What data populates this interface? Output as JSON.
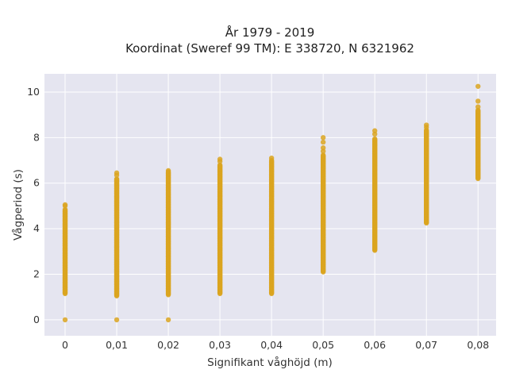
{
  "chart_data": {
    "type": "scatter",
    "title_line1": "År 1979 - 2019",
    "title_line2": "Koordinat (Sweref 99 TM): E 338720, N 6321962",
    "xlabel": "Signifikant våghöjd (m)",
    "ylabel": "Vågperiod (s)",
    "x_tick_labels": [
      "0",
      "0,01",
      "0,02",
      "0,03",
      "0,04",
      "0,05",
      "0,06",
      "0,07",
      "0,08"
    ],
    "y_tick_labels": [
      "0",
      "2",
      "4",
      "6",
      "8",
      "10"
    ],
    "xlim": [
      -0.004,
      0.0835
    ],
    "ylim": [
      -0.7,
      10.8
    ],
    "grid": true,
    "background": "#e5e5f0",
    "marker_color": "#daa520",
    "columns": [
      {
        "x": 0.0,
        "zero": true,
        "ymin": 1.15,
        "ymax": 4.85,
        "outliers": [
          5.0,
          5.05
        ]
      },
      {
        "x": 0.01,
        "zero": true,
        "ymin": 1.05,
        "ymax": 6.2,
        "outliers": [
          6.35,
          6.45
        ]
      },
      {
        "x": 0.02,
        "zero": true,
        "ymin": 1.1,
        "ymax": 6.5,
        "outliers": [
          6.55
        ]
      },
      {
        "x": 0.03,
        "zero": false,
        "ymin": 1.15,
        "ymax": 6.8,
        "outliers": [
          6.95,
          7.05
        ]
      },
      {
        "x": 0.04,
        "zero": false,
        "ymin": 1.15,
        "ymax": 7.0,
        "outliers": [
          7.1
        ]
      },
      {
        "x": 0.05,
        "zero": false,
        "ymin": 2.1,
        "ymax": 7.25,
        "outliers": [
          7.4,
          7.55,
          7.8,
          8.0
        ]
      },
      {
        "x": 0.06,
        "zero": false,
        "ymin": 3.05,
        "ymax": 7.95,
        "outliers": [
          8.15,
          8.3
        ]
      },
      {
        "x": 0.07,
        "zero": false,
        "ymin": 4.25,
        "ymax": 8.35,
        "outliers": [
          8.45,
          8.55
        ]
      },
      {
        "x": 0.08,
        "zero": false,
        "ymin": 6.2,
        "ymax": 9.2,
        "outliers": [
          9.35,
          9.6,
          10.25
        ]
      }
    ]
  }
}
